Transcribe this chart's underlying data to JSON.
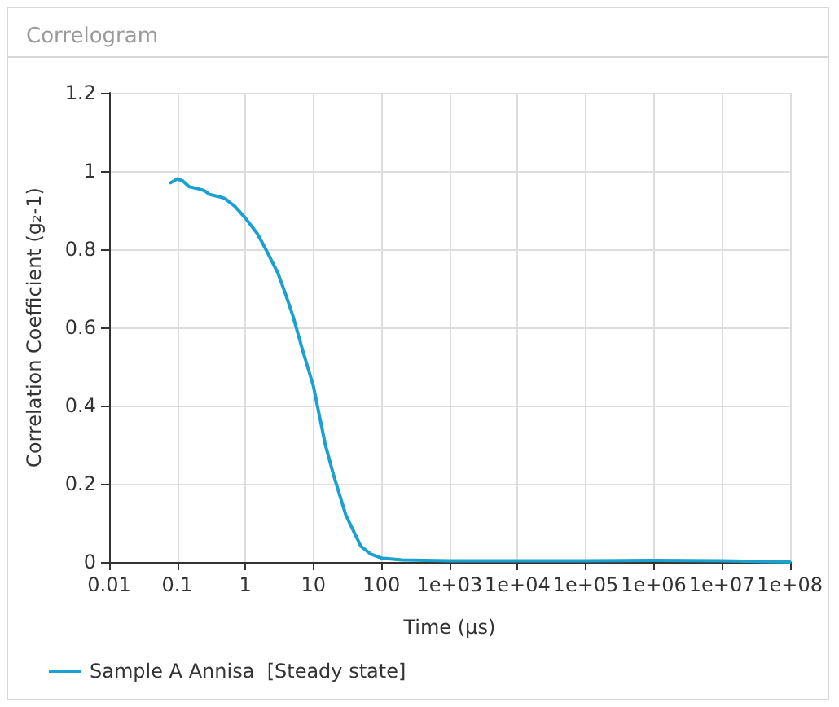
{
  "chart_data": {
    "type": "line",
    "title": "Correlogram",
    "xlabel": "Time (µs)",
    "ylabel": "Correlation Coefficient (g₂-1)",
    "log": "x",
    "grid": true,
    "legend": "bottom",
    "marker": "none",
    "line_style": "solid",
    "xlim": [
      0.01,
      100000000
    ],
    "xticks": [
      0.01,
      0.1,
      1,
      10,
      100,
      {
        "value": 1000,
        "label": "1e+03"
      },
      {
        "value": 10000,
        "label": "1e+04"
      },
      {
        "value": 100000,
        "label": "1e+05"
      },
      {
        "value": 1000000,
        "label": "1e+06"
      },
      {
        "value": 10000000,
        "label": "1e+07"
      },
      {
        "value": 100000000,
        "label": "1e+08"
      }
    ],
    "ylim": [
      0,
      1.2
    ],
    "yticks": [
      0,
      0.2,
      0.4,
      0.6,
      0.8,
      1,
      1.2
    ],
    "series": [
      {
        "name": "Sample A Annisa  [Steady state]",
        "color": "#1ba1d0",
        "x": [
          0.08,
          0.1,
          0.12,
          0.15,
          0.2,
          0.25,
          0.3,
          0.4,
          0.5,
          0.7,
          1,
          1.5,
          2,
          3,
          4,
          5,
          7,
          10,
          15,
          20,
          30,
          50,
          70,
          100,
          200,
          1000,
          10000,
          100000,
          1000000,
          10000000,
          100000000
        ],
        "values": [
          0.97,
          0.98,
          0.975,
          0.96,
          0.955,
          0.95,
          0.94,
          0.935,
          0.93,
          0.91,
          0.88,
          0.84,
          0.8,
          0.74,
          0.68,
          0.63,
          0.54,
          0.45,
          0.3,
          0.22,
          0.12,
          0.04,
          0.02,
          0.01,
          0.005,
          0.003,
          0.003,
          0.003,
          0.004,
          0.003,
          0
        ]
      }
    ]
  }
}
